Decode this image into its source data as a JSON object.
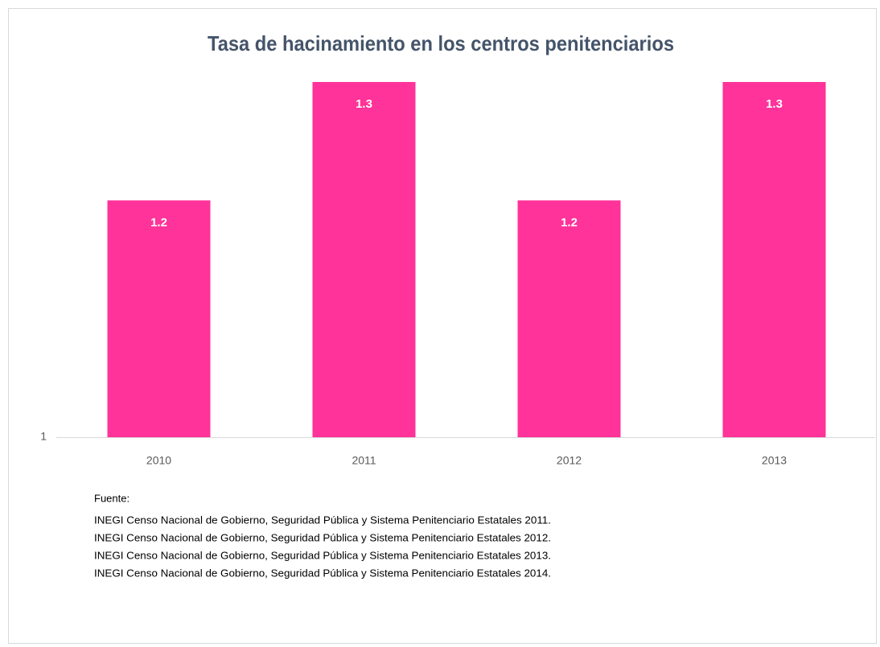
{
  "chart_data": {
    "type": "bar",
    "title": "Tasa de hacinamiento en los centros penitenciarios",
    "categories": [
      "2010",
      "2011",
      "2012",
      "2013"
    ],
    "values": [
      1.2,
      1.3,
      1.2,
      1.3
    ],
    "color": "#ff3399",
    "ylim": [
      1,
      1.3
    ],
    "yticks": [
      1
    ],
    "grid": false,
    "source_label": "Fuente:",
    "source_lines": [
      "INEGI Censo Nacional de Gobierno, Seguridad Pública y Sistema Penitenciario Estatales 2011.",
      "INEGI Censo Nacional de Gobierno, Seguridad Pública y Sistema Penitenciario Estatales 2012.",
      "INEGI Censo Nacional de Gobierno, Seguridad Pública y Sistema Penitenciario Estatales 2013.",
      "INEGI Censo Nacional de Gobierno, Seguridad Pública y Sistema Penitenciario Estatales 2014."
    ]
  }
}
